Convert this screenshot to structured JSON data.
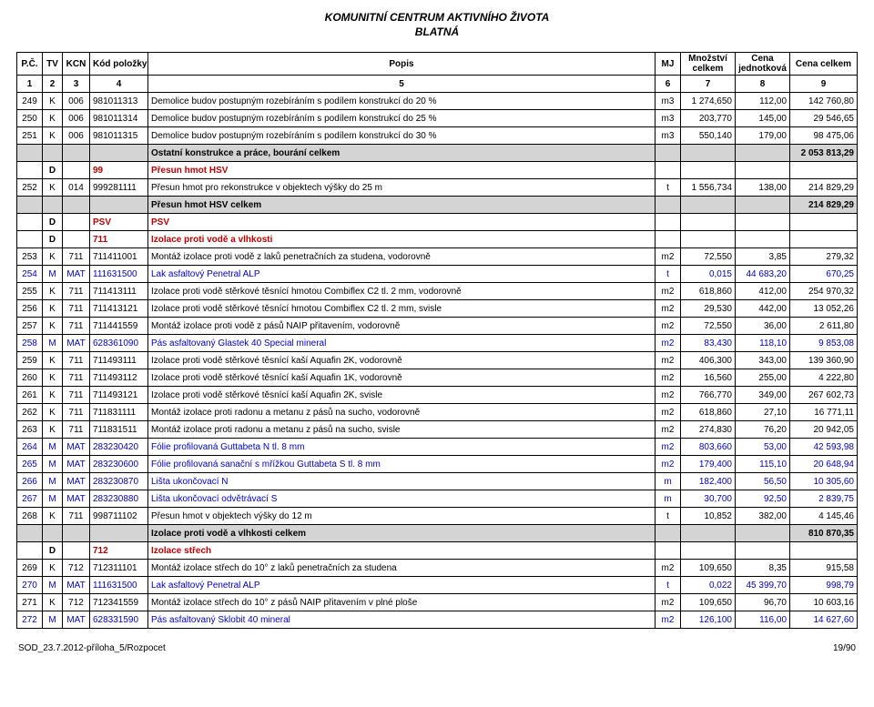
{
  "title_line1": "KOMUNITNÍ CENTRUM AKTIVNÍHO ŽIVOTA",
  "title_line2": "BLATNÁ",
  "headers": {
    "pc": "P.Č.",
    "tv": "TV",
    "kcn": "KCN",
    "kod": "Kód položky",
    "popis": "Popis",
    "mj": "MJ",
    "mnozstvi": "Množství celkem",
    "cena_j": "Cena jednotková",
    "cena_c": "Cena celkem"
  },
  "colnums": {
    "c1": "1",
    "c2": "2",
    "c3": "3",
    "c4": "4",
    "c5": "5",
    "c6": "6",
    "c7": "7",
    "c8": "8",
    "c9": "9"
  },
  "rows": [
    {
      "t": "item",
      "pc": "249",
      "tv": "K",
      "kcn": "006",
      "kod": "981011313",
      "desc": "Demolice budov postupným rozebíráním s podílem konstrukcí do 20 %",
      "mj": "m3",
      "qty": "1 274,650",
      "unit": "112,00",
      "total": "142 760,80"
    },
    {
      "t": "item",
      "pc": "250",
      "tv": "K",
      "kcn": "006",
      "kod": "981011314",
      "desc": "Demolice budov postupným rozebíráním s podílem konstrukcí do 25 %",
      "mj": "m3",
      "qty": "203,770",
      "unit": "145,00",
      "total": "29 546,65"
    },
    {
      "t": "item",
      "pc": "251",
      "tv": "K",
      "kcn": "006",
      "kod": "981011315",
      "desc": "Demolice budov postupným rozebíráním s podílem konstrukcí do 30 %",
      "mj": "m3",
      "qty": "550,140",
      "unit": "179,00",
      "total": "98 475,06"
    },
    {
      "t": "subtotal",
      "desc": "Ostatní konstrukce a práce, bourání celkem",
      "total": "2 053 813,29"
    },
    {
      "t": "section",
      "tv": "D",
      "code": "99",
      "desc": "Přesun hmot HSV"
    },
    {
      "t": "item",
      "pc": "252",
      "tv": "K",
      "kcn": "014",
      "kod": "999281111",
      "desc": "Přesun hmot pro rekonstrukce v objektech výšky do 25 m",
      "mj": "t",
      "qty": "1 556,734",
      "unit": "138,00",
      "total": "214 829,29"
    },
    {
      "t": "subtotal",
      "desc": "Přesun hmot HSV celkem",
      "total": "214 829,29"
    },
    {
      "t": "section",
      "tv": "D",
      "code": "PSV",
      "desc": "PSV"
    },
    {
      "t": "section",
      "tv": "D",
      "code": "711",
      "desc": "Izolace proti vodě a vlhkosti"
    },
    {
      "t": "item",
      "pc": "253",
      "tv": "K",
      "kcn": "711",
      "kod": "711411001",
      "desc": "Montáž izolace proti vodě z laků penetračních za studena, vodorovně",
      "mj": "m2",
      "qty": "72,550",
      "unit": "3,85",
      "total": "279,32"
    },
    {
      "t": "mat",
      "pc": "254",
      "tv": "M",
      "kcn": "MAT",
      "kod": "111631500",
      "desc": "Lak asfaltový Penetral ALP",
      "mj": "t",
      "qty": "0,015",
      "unit": "44 683,20",
      "total": "670,25"
    },
    {
      "t": "item",
      "pc": "255",
      "tv": "K",
      "kcn": "711",
      "kod": "711413111",
      "desc": "Izolace proti vodě stěrkové těsnící hmotou Combiflex C2 tl. 2 mm, vodorovně",
      "mj": "m2",
      "qty": "618,860",
      "unit": "412,00",
      "total": "254 970,32"
    },
    {
      "t": "item",
      "pc": "256",
      "tv": "K",
      "kcn": "711",
      "kod": "711413121",
      "desc": "Izolace proti vodě stěrkové těsnící hmotou Combiflex C2 tl. 2 mm, svisle",
      "mj": "m2",
      "qty": "29,530",
      "unit": "442,00",
      "total": "13 052,26"
    },
    {
      "t": "item",
      "pc": "257",
      "tv": "K",
      "kcn": "711",
      "kod": "711441559",
      "desc": "Montáž izolace proti vodě z pásů NAIP přitavením, vodorovně",
      "mj": "m2",
      "qty": "72,550",
      "unit": "36,00",
      "total": "2 611,80"
    },
    {
      "t": "mat",
      "pc": "258",
      "tv": "M",
      "kcn": "MAT",
      "kod": "628361090",
      "desc": "Pás asfaltovaný Glastek 40 Special mineral",
      "mj": "m2",
      "qty": "83,430",
      "unit": "118,10",
      "total": "9 853,08"
    },
    {
      "t": "item",
      "pc": "259",
      "tv": "K",
      "kcn": "711",
      "kod": "711493111",
      "desc": "Izolace proti vodě stěrkové těsnící kaší Aquafin 2K, vodorovně",
      "mj": "m2",
      "qty": "406,300",
      "unit": "343,00",
      "total": "139 360,90"
    },
    {
      "t": "item",
      "pc": "260",
      "tv": "K",
      "kcn": "711",
      "kod": "711493112",
      "desc": "Izolace proti vodě stěrkové těsnící kaší Aquafin 1K, vodorovně",
      "mj": "m2",
      "qty": "16,560",
      "unit": "255,00",
      "total": "4 222,80"
    },
    {
      "t": "item",
      "pc": "261",
      "tv": "K",
      "kcn": "711",
      "kod": "711493121",
      "desc": "Izolace proti vodě stěrkové těsnící kaší Aquafin 2K, svisle",
      "mj": "m2",
      "qty": "766,770",
      "unit": "349,00",
      "total": "267 602,73"
    },
    {
      "t": "item",
      "pc": "262",
      "tv": "K",
      "kcn": "711",
      "kod": "711831111",
      "desc": "Montáž izolace proti radonu a metanu z pásů na sucho, vodorovně",
      "mj": "m2",
      "qty": "618,860",
      "unit": "27,10",
      "total": "16 771,11"
    },
    {
      "t": "item",
      "pc": "263",
      "tv": "K",
      "kcn": "711",
      "kod": "711831511",
      "desc": "Montáž izolace proti radonu a metanu z pásů na sucho, svisle",
      "mj": "m2",
      "qty": "274,830",
      "unit": "76,20",
      "total": "20 942,05"
    },
    {
      "t": "mat",
      "pc": "264",
      "tv": "M",
      "kcn": "MAT",
      "kod": "283230420",
      "desc": "Fólie profilovaná Guttabeta N tl. 8 mm",
      "mj": "m2",
      "qty": "803,660",
      "unit": "53,00",
      "total": "42 593,98"
    },
    {
      "t": "mat",
      "pc": "265",
      "tv": "M",
      "kcn": "MAT",
      "kod": "283230600",
      "desc": "Fólie profilovaná sanační s mřížkou Guttabeta S tl. 8 mm",
      "mj": "m2",
      "qty": "179,400",
      "unit": "115,10",
      "total": "20 648,94"
    },
    {
      "t": "mat",
      "pc": "266",
      "tv": "M",
      "kcn": "MAT",
      "kod": "283230870",
      "desc": "Lišta ukončovací N",
      "mj": "m",
      "qty": "182,400",
      "unit": "56,50",
      "total": "10 305,60"
    },
    {
      "t": "mat",
      "pc": "267",
      "tv": "M",
      "kcn": "MAT",
      "kod": "283230880",
      "desc": "Lišta ukončovací odvětrávací S",
      "mj": "m",
      "qty": "30,700",
      "unit": "92,50",
      "total": "2 839,75"
    },
    {
      "t": "item",
      "pc": "268",
      "tv": "K",
      "kcn": "711",
      "kod": "998711102",
      "desc": "Přesun hmot v objektech výšky do 12 m",
      "mj": "t",
      "qty": "10,852",
      "unit": "382,00",
      "total": "4 145,46"
    },
    {
      "t": "subtotal",
      "desc": "Izolace proti vodě a vlhkosti celkem",
      "total": "810 870,35"
    },
    {
      "t": "section",
      "tv": "D",
      "code": "712",
      "desc": "Izolace střech"
    },
    {
      "t": "item",
      "pc": "269",
      "tv": "K",
      "kcn": "712",
      "kod": "712311101",
      "desc": "Montáž izolace střech do 10° z laků penetračních za studena",
      "mj": "m2",
      "qty": "109,650",
      "unit": "8,35",
      "total": "915,58"
    },
    {
      "t": "mat",
      "pc": "270",
      "tv": "M",
      "kcn": "MAT",
      "kod": "111631500",
      "desc": "Lak asfaltový Penetral ALP",
      "mj": "t",
      "qty": "0,022",
      "unit": "45 399,70",
      "total": "998,79"
    },
    {
      "t": "item",
      "pc": "271",
      "tv": "K",
      "kcn": "712",
      "kod": "712341559",
      "desc": "Montáž izolace střech do 10° z pásů NAIP přitavením v plné ploše",
      "mj": "m2",
      "qty": "109,650",
      "unit": "96,70",
      "total": "10 603,16"
    },
    {
      "t": "mat",
      "pc": "272",
      "tv": "M",
      "kcn": "MAT",
      "kod": "628331590",
      "desc": "Pás asfaltovaný Sklobit 40 mineral",
      "mj": "m2",
      "qty": "126,100",
      "unit": "116,00",
      "total": "14 627,60"
    }
  ],
  "footer_left": "SOD_23.7.2012-příloha_5/Rozpocet",
  "footer_right": "19/90"
}
